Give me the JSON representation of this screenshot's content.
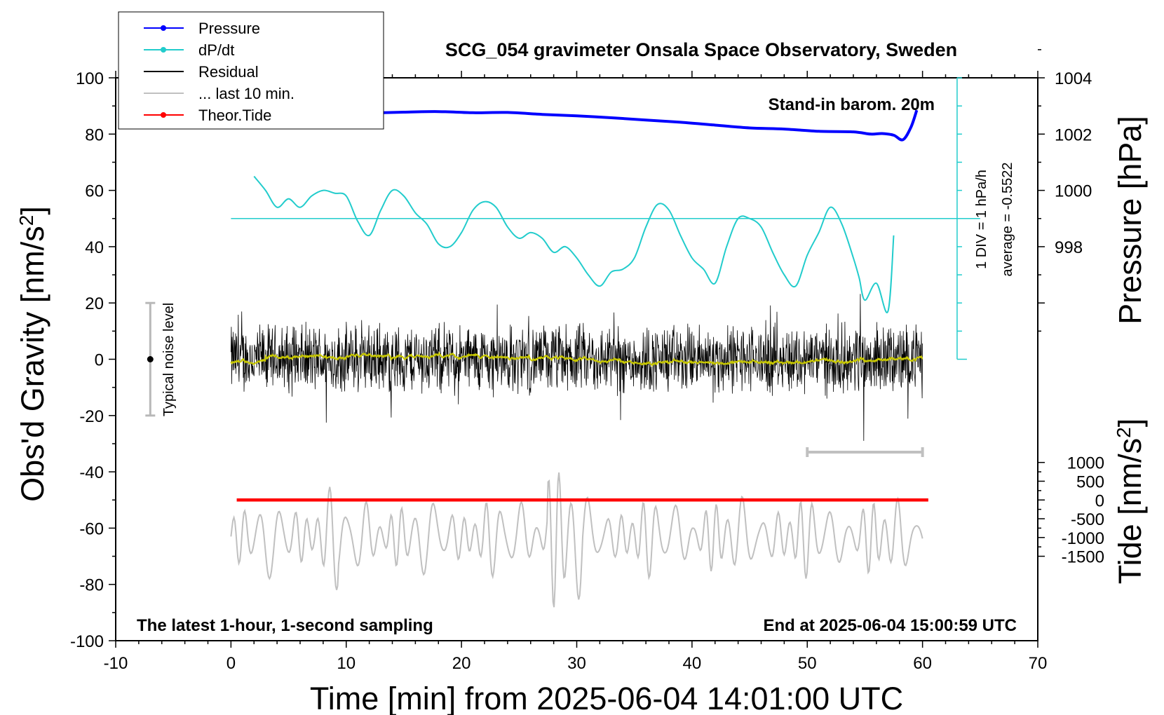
{
  "chart_data": {
    "type": "line",
    "title": "SCG_054 gravimeter Onsala Space Observatory, Sweden",
    "xlabel": "Time [min] from 2025-06-04 14:01:00 UTC",
    "ylabel_left": "Obs'd Gravity [nm/s",
    "ylabel_left_sup": "2",
    "ylabel_left_end": "]",
    "ylabel_right_pressure": "Pressure [hPa]",
    "ylabel_right_tide": "Tide [nm/s",
    "ylabel_right_tide_sup": "2",
    "ylabel_right_tide_end": "]",
    "xlim": [
      -10,
      70
    ],
    "ylim_left": [
      -100,
      100
    ],
    "xticks": [
      -10,
      0,
      10,
      20,
      30,
      40,
      50,
      60,
      70
    ],
    "yticks_left": [
      -100,
      -80,
      -60,
      -40,
      -20,
      0,
      20,
      40,
      60,
      80,
      100
    ],
    "pressure_ticks": [
      998,
      1000,
      1002,
      1004
    ],
    "pressure_axis": {
      "value_at_gravity_0": 994,
      "hpa_per_20_nms2": 2
    },
    "tide_ticks": [
      -1500,
      -1000,
      -500,
      0,
      500,
      1000
    ],
    "tide_axis": {
      "value_at_gravity_minus_50": 0,
      "nms2_per_20_nms2": 1500
    },
    "grid": false,
    "legend": {
      "position": "top-left",
      "entries": [
        {
          "label": "Pressure",
          "color": "#0000ff",
          "marker": "dot"
        },
        {
          "label": "dP/dt",
          "color": "#22cccc",
          "marker": "dot"
        },
        {
          "label": "Residual",
          "color": "#000000",
          "marker": "line"
        },
        {
          "label": "... last 10 min.",
          "color": "#c0c0c0",
          "marker": "line"
        },
        {
          "label": "Theor.Tide",
          "color": "#ff0000",
          "marker": "dot"
        }
      ]
    },
    "annotations": {
      "barometer": "Stand-in barom. 20m",
      "bottom_left": "The latest 1-hour, 1-second sampling",
      "bottom_right": "End at 2025-06-04 15:00:59 UTC",
      "noise": "Typical noise level",
      "div_note": "1 DIV = 1 hPa/h",
      "average_note": "average = -0.5522"
    },
    "noise_bar": {
      "x": -7,
      "center": 0,
      "half_range": 20
    },
    "dpdt_axis_x": 63,
    "dpdt_zero_level": 50,
    "last10_bar": {
      "x_start": 50,
      "x_end": 60,
      "y": -33
    },
    "series": [
      {
        "name": "Pressure",
        "color": "#0000ff",
        "units": "hPa",
        "x": [
          0.5,
          3,
          6,
          9,
          12,
          15,
          18,
          21,
          24,
          27,
          30,
          33,
          36,
          39,
          42,
          45,
          48,
          51,
          54,
          55.5,
          56.5,
          57.5,
          58.3,
          59,
          59.5
        ],
        "values": [
          1002.6,
          1002.65,
          1002.68,
          1002.72,
          1002.75,
          1002.78,
          1002.8,
          1002.76,
          1002.77,
          1002.7,
          1002.65,
          1002.58,
          1002.5,
          1002.42,
          1002.32,
          1002.22,
          1002.18,
          1002.1,
          1002.08,
          1002.0,
          1002.02,
          1001.96,
          1001.8,
          1002.25,
          1002.85
        ]
      },
      {
        "name": "dP/dt",
        "color": "#22cccc",
        "units": "nm/s2 (plotted)",
        "x": [
          2,
          3,
          4,
          5,
          6,
          7,
          8,
          9,
          10,
          11,
          12,
          13,
          14,
          15,
          16,
          17,
          18,
          19,
          20,
          21,
          22,
          23,
          24,
          25,
          26,
          27,
          28,
          29,
          30,
          31,
          32,
          33,
          34,
          35,
          36,
          37,
          38,
          39,
          40,
          41,
          42,
          43,
          44,
          45,
          46,
          47,
          48,
          49,
          50,
          51,
          52,
          53,
          54,
          54.5,
          55,
          56,
          57,
          57.5
        ],
        "values": [
          65,
          60,
          54,
          57,
          54,
          58,
          60,
          59,
          58,
          49,
          44,
          53,
          60,
          58,
          52,
          48,
          41,
          40,
          45,
          53,
          56,
          54,
          47,
          43,
          45,
          43,
          38,
          40,
          36,
          30,
          26,
          31,
          32,
          36,
          47,
          55,
          53,
          44,
          36,
          32,
          27,
          40,
          50,
          50,
          47,
          38,
          30,
          26,
          37,
          45,
          54,
          48,
          36,
          29,
          21,
          27,
          17,
          44
        ]
      },
      {
        "name": "Residual",
        "color": "#000000",
        "units": "nm/s2",
        "x": [
          0,
          60
        ],
        "values": [
          0,
          0
        ],
        "typical_amplitude": 10,
        "min": -29,
        "max": 29
      },
      {
        "name": "... last 10 min.",
        "color": "#c0c0c0",
        "units": "nm/s2 (offset)",
        "x": [
          0,
          60
        ],
        "values": [
          -63,
          -63
        ]
      },
      {
        "name": "Theor.Tide",
        "color": "#ff0000",
        "units": "nm/s2",
        "x": [
          0.5,
          60.5
        ],
        "values": [
          0,
          0
        ]
      }
    ]
  }
}
